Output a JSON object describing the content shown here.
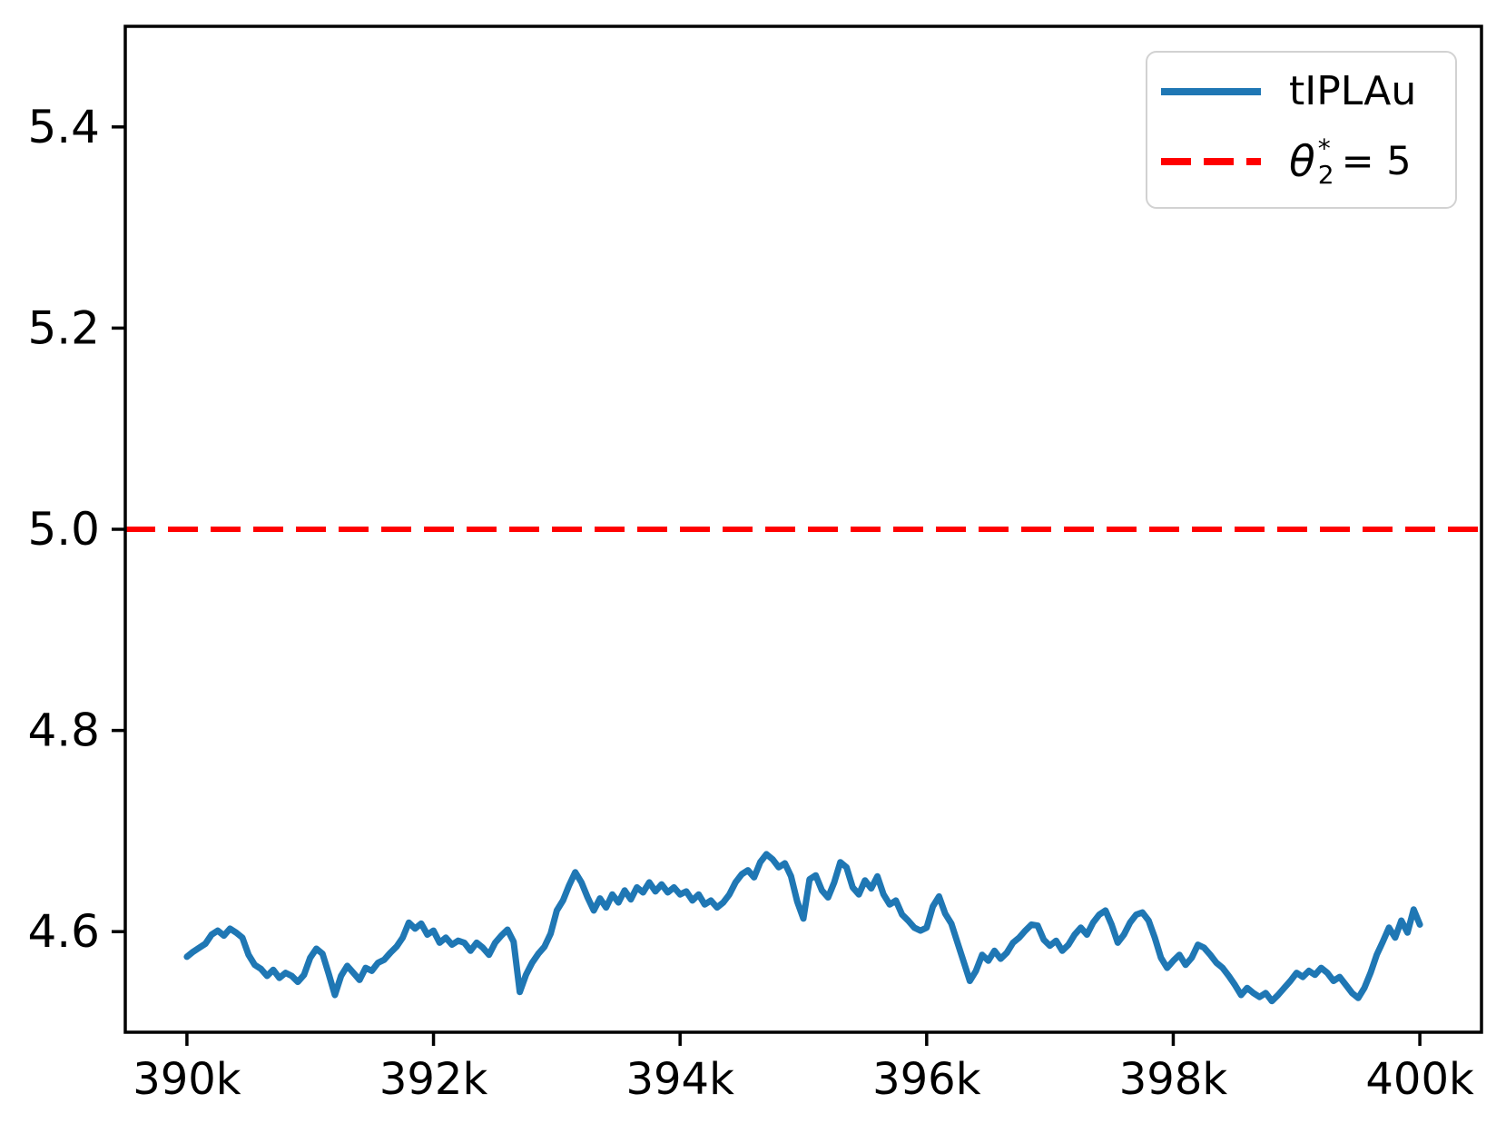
{
  "figure": {
    "background": "#ffffff"
  },
  "legend": {
    "position": "upper right",
    "items": [
      {
        "label": "tIPLAu",
        "color": "#1f77b4",
        "line_style": "solid"
      },
      {
        "label_text": "θ₂* = 5",
        "label_theta": "θ",
        "label_sub": "2",
        "label_sup": "*",
        "label_eq": "= 5",
        "color": "#ff0000",
        "line_style": "dashed"
      }
    ]
  },
  "chart_data": {
    "type": "line",
    "title": "",
    "xlabel": "",
    "ylabel": "",
    "xlim": [
      389500,
      400500
    ],
    "ylim": [
      4.5,
      5.5
    ],
    "grid": false,
    "legend_position": "upper right",
    "x_ticks": [
      {
        "v": 390000,
        "label": "390k"
      },
      {
        "v": 392000,
        "label": "392k"
      },
      {
        "v": 394000,
        "label": "394k"
      },
      {
        "v": 396000,
        "label": "396k"
      },
      {
        "v": 398000,
        "label": "398k"
      },
      {
        "v": 400000,
        "label": "400k"
      }
    ],
    "y_ticks": [
      {
        "v": 4.6,
        "label": "4.6"
      },
      {
        "v": 4.8,
        "label": "4.8"
      },
      {
        "v": 5.0,
        "label": "5.0"
      },
      {
        "v": 5.2,
        "label": "5.2"
      },
      {
        "v": 5.4,
        "label": "5.4"
      }
    ],
    "series": [
      {
        "name": "tIPLAu",
        "type": "line",
        "color": "#1f77b4",
        "linewidth": 7,
        "x_start": 390000,
        "x_step": 50,
        "y": [
          4.575,
          4.58,
          4.584,
          4.588,
          4.597,
          4.601,
          4.596,
          4.603,
          4.599,
          4.594,
          4.577,
          4.567,
          4.563,
          4.556,
          4.562,
          4.554,
          4.559,
          4.556,
          4.55,
          4.557,
          4.574,
          4.583,
          4.578,
          4.558,
          4.537,
          4.556,
          4.566,
          4.559,
          4.552,
          4.564,
          4.561,
          4.569,
          4.572,
          4.579,
          4.585,
          4.594,
          4.609,
          4.603,
          4.608,
          4.597,
          4.601,
          4.589,
          4.594,
          4.587,
          4.591,
          4.589,
          4.581,
          4.589,
          4.584,
          4.577,
          4.589,
          4.596,
          4.602,
          4.59,
          4.54,
          4.557,
          4.569,
          4.578,
          4.585,
          4.598,
          4.621,
          4.631,
          4.646,
          4.659,
          4.649,
          4.634,
          4.621,
          4.633,
          4.624,
          4.637,
          4.629,
          4.641,
          4.632,
          4.644,
          4.639,
          4.649,
          4.64,
          4.647,
          4.639,
          4.644,
          4.637,
          4.64,
          4.631,
          4.637,
          4.627,
          4.631,
          4.624,
          4.629,
          4.637,
          4.649,
          4.657,
          4.661,
          4.654,
          4.669,
          4.677,
          4.672,
          4.664,
          4.668,
          4.655,
          4.63,
          4.613,
          4.652,
          4.656,
          4.641,
          4.634,
          4.649,
          4.669,
          4.664,
          4.644,
          4.637,
          4.651,
          4.643,
          4.655,
          4.637,
          4.627,
          4.631,
          4.617,
          4.611,
          4.604,
          4.601,
          4.604,
          4.625,
          4.635,
          4.618,
          4.608,
          4.589,
          4.57,
          4.551,
          4.561,
          4.577,
          4.571,
          4.581,
          4.573,
          4.579,
          4.589,
          4.594,
          4.601,
          4.607,
          4.606,
          4.592,
          4.586,
          4.591,
          4.581,
          4.587,
          4.597,
          4.604,
          4.597,
          4.609,
          4.617,
          4.621,
          4.607,
          4.589,
          4.597,
          4.609,
          4.617,
          4.619,
          4.611,
          4.594,
          4.574,
          4.564,
          4.571,
          4.577,
          4.567,
          4.574,
          4.587,
          4.584,
          4.577,
          4.569,
          4.564,
          4.556,
          4.547,
          4.537,
          4.544,
          4.539,
          4.535,
          4.539,
          4.531,
          4.537,
          4.544,
          4.551,
          4.559,
          4.555,
          4.561,
          4.557,
          4.564,
          4.559,
          4.551,
          4.555,
          4.547,
          4.539,
          4.534,
          4.544,
          4.559,
          4.577,
          4.59,
          4.604,
          4.594,
          4.611,
          4.599,
          4.622,
          4.607
        ]
      },
      {
        "name": "θ₂* = 5",
        "type": "hline",
        "color": "#ff0000",
        "linewidth": 6,
        "dash": [
          33,
          14
        ],
        "y_const": 5.0
      }
    ]
  }
}
